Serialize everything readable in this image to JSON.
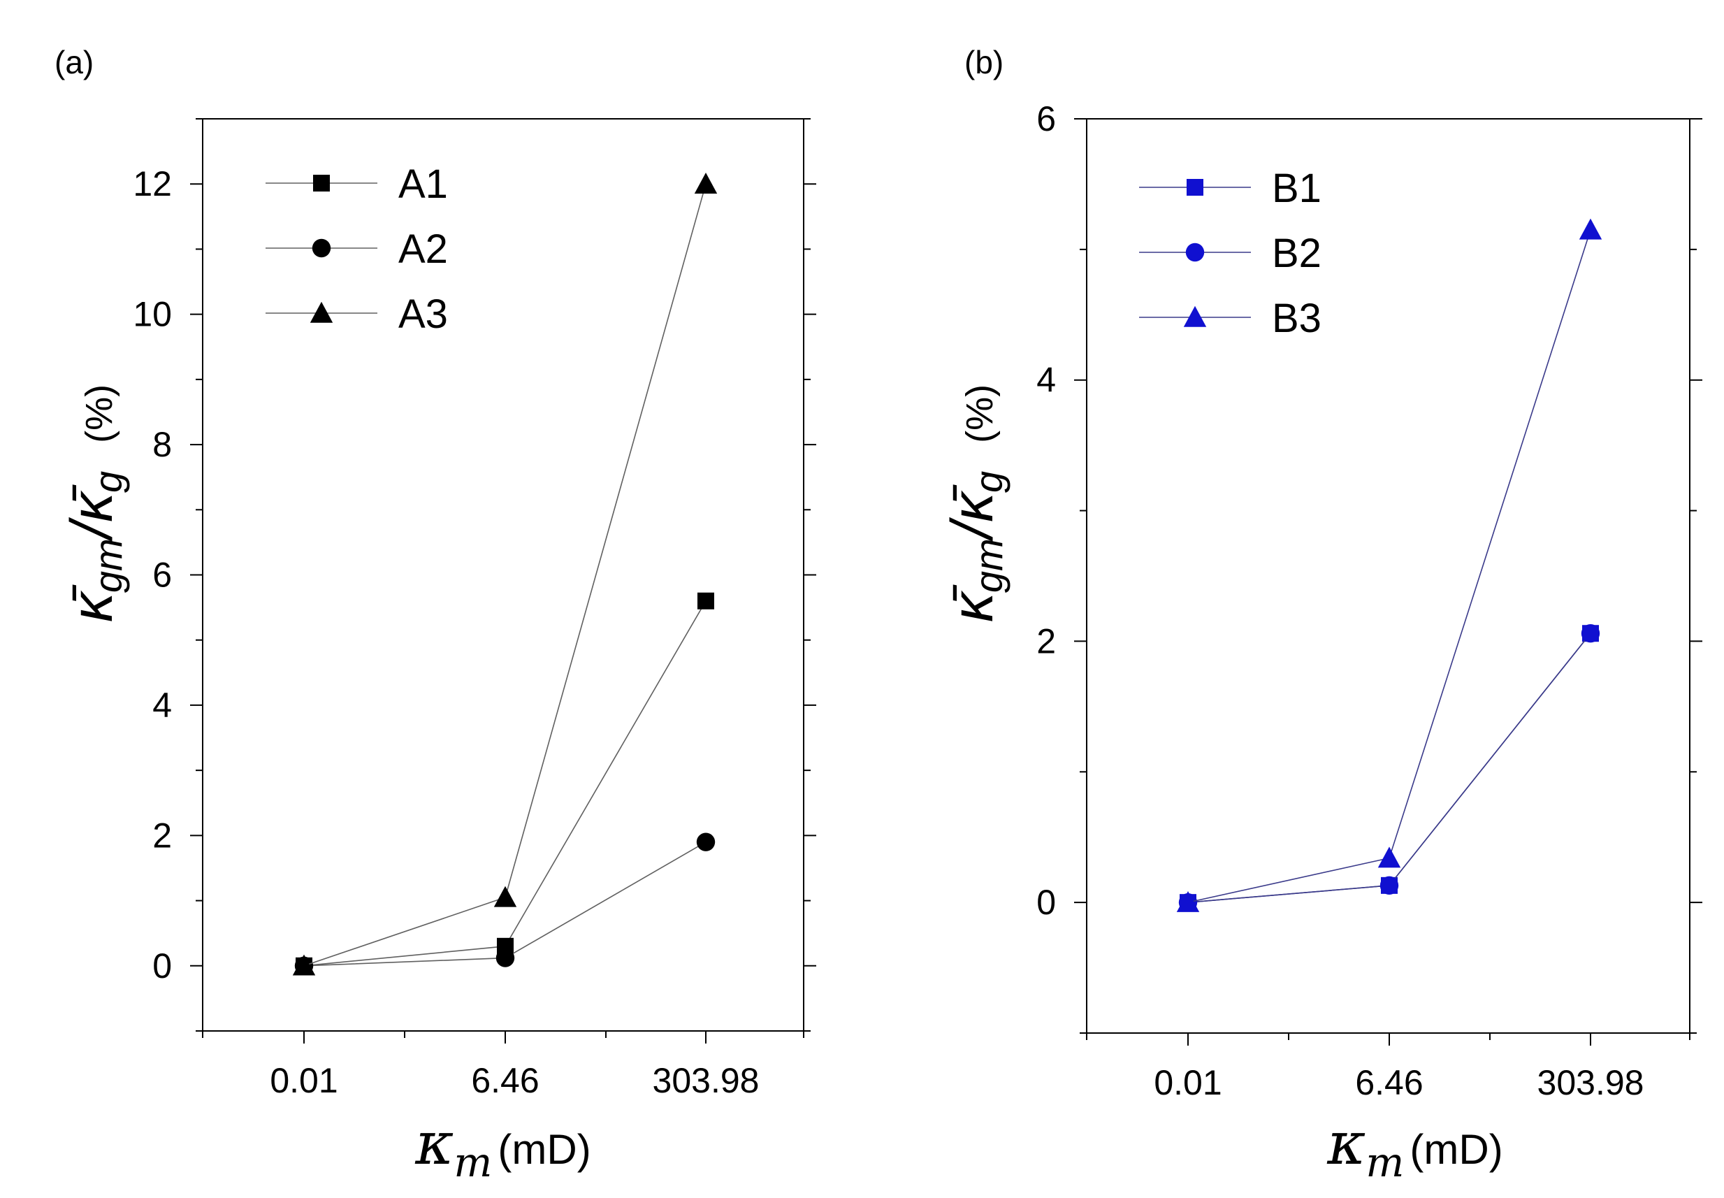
{
  "chart_data": [
    {
      "panel": "(a)",
      "type": "line",
      "categories": [
        "0.01",
        "6.46",
        "303.98"
      ],
      "series": [
        {
          "name": "A1",
          "marker": "square",
          "values": [
            0,
            0.3,
            5.6
          ]
        },
        {
          "name": "A2",
          "marker": "circle",
          "values": [
            0,
            0.12,
            1.9
          ]
        },
        {
          "name": "A3",
          "marker": "triangle",
          "values": [
            0,
            1.05,
            12
          ]
        }
      ],
      "ylim": [
        -1,
        13
      ],
      "yticks": [
        "0",
        "2",
        "4",
        "6",
        "8",
        "10",
        "12"
      ],
      "ylabel": {
        "main": "κ̄",
        "sub1": "gm",
        "sep": "/",
        "main2": "κ̄",
        "sub2": "g",
        "unit": "(%)"
      },
      "xlabel": {
        "symbol": "κ",
        "sub": "m",
        "unit": "(mD)"
      },
      "colors": {
        "line": "#606060",
        "marker": "#000000"
      },
      "legend_position": "top-left"
    },
    {
      "panel": "(b)",
      "type": "line",
      "categories": [
        "0.01",
        "6.46",
        "303.98"
      ],
      "series": [
        {
          "name": "B1",
          "marker": "square",
          "values": [
            0,
            0.13,
            2.06
          ]
        },
        {
          "name": "B2",
          "marker": "circle",
          "values": [
            0,
            0.13,
            2.06
          ]
        },
        {
          "name": "B3",
          "marker": "triangle",
          "values": [
            0,
            0.34,
            5.15
          ]
        }
      ],
      "ylim": [
        -1,
        6
      ],
      "yticks": [
        "0",
        "2",
        "4",
        "6"
      ],
      "ylabel": {
        "main": "κ̄",
        "sub1": "gm",
        "sep": "/",
        "main2": "κ̄",
        "sub2": "g",
        "unit": "(%)"
      },
      "xlabel": {
        "symbol": "κ",
        "sub": "m",
        "unit": "(mD)"
      },
      "colors": {
        "line": "#3a3a8a",
        "marker": "#1010d0"
      },
      "legend_position": "top-left"
    }
  ]
}
